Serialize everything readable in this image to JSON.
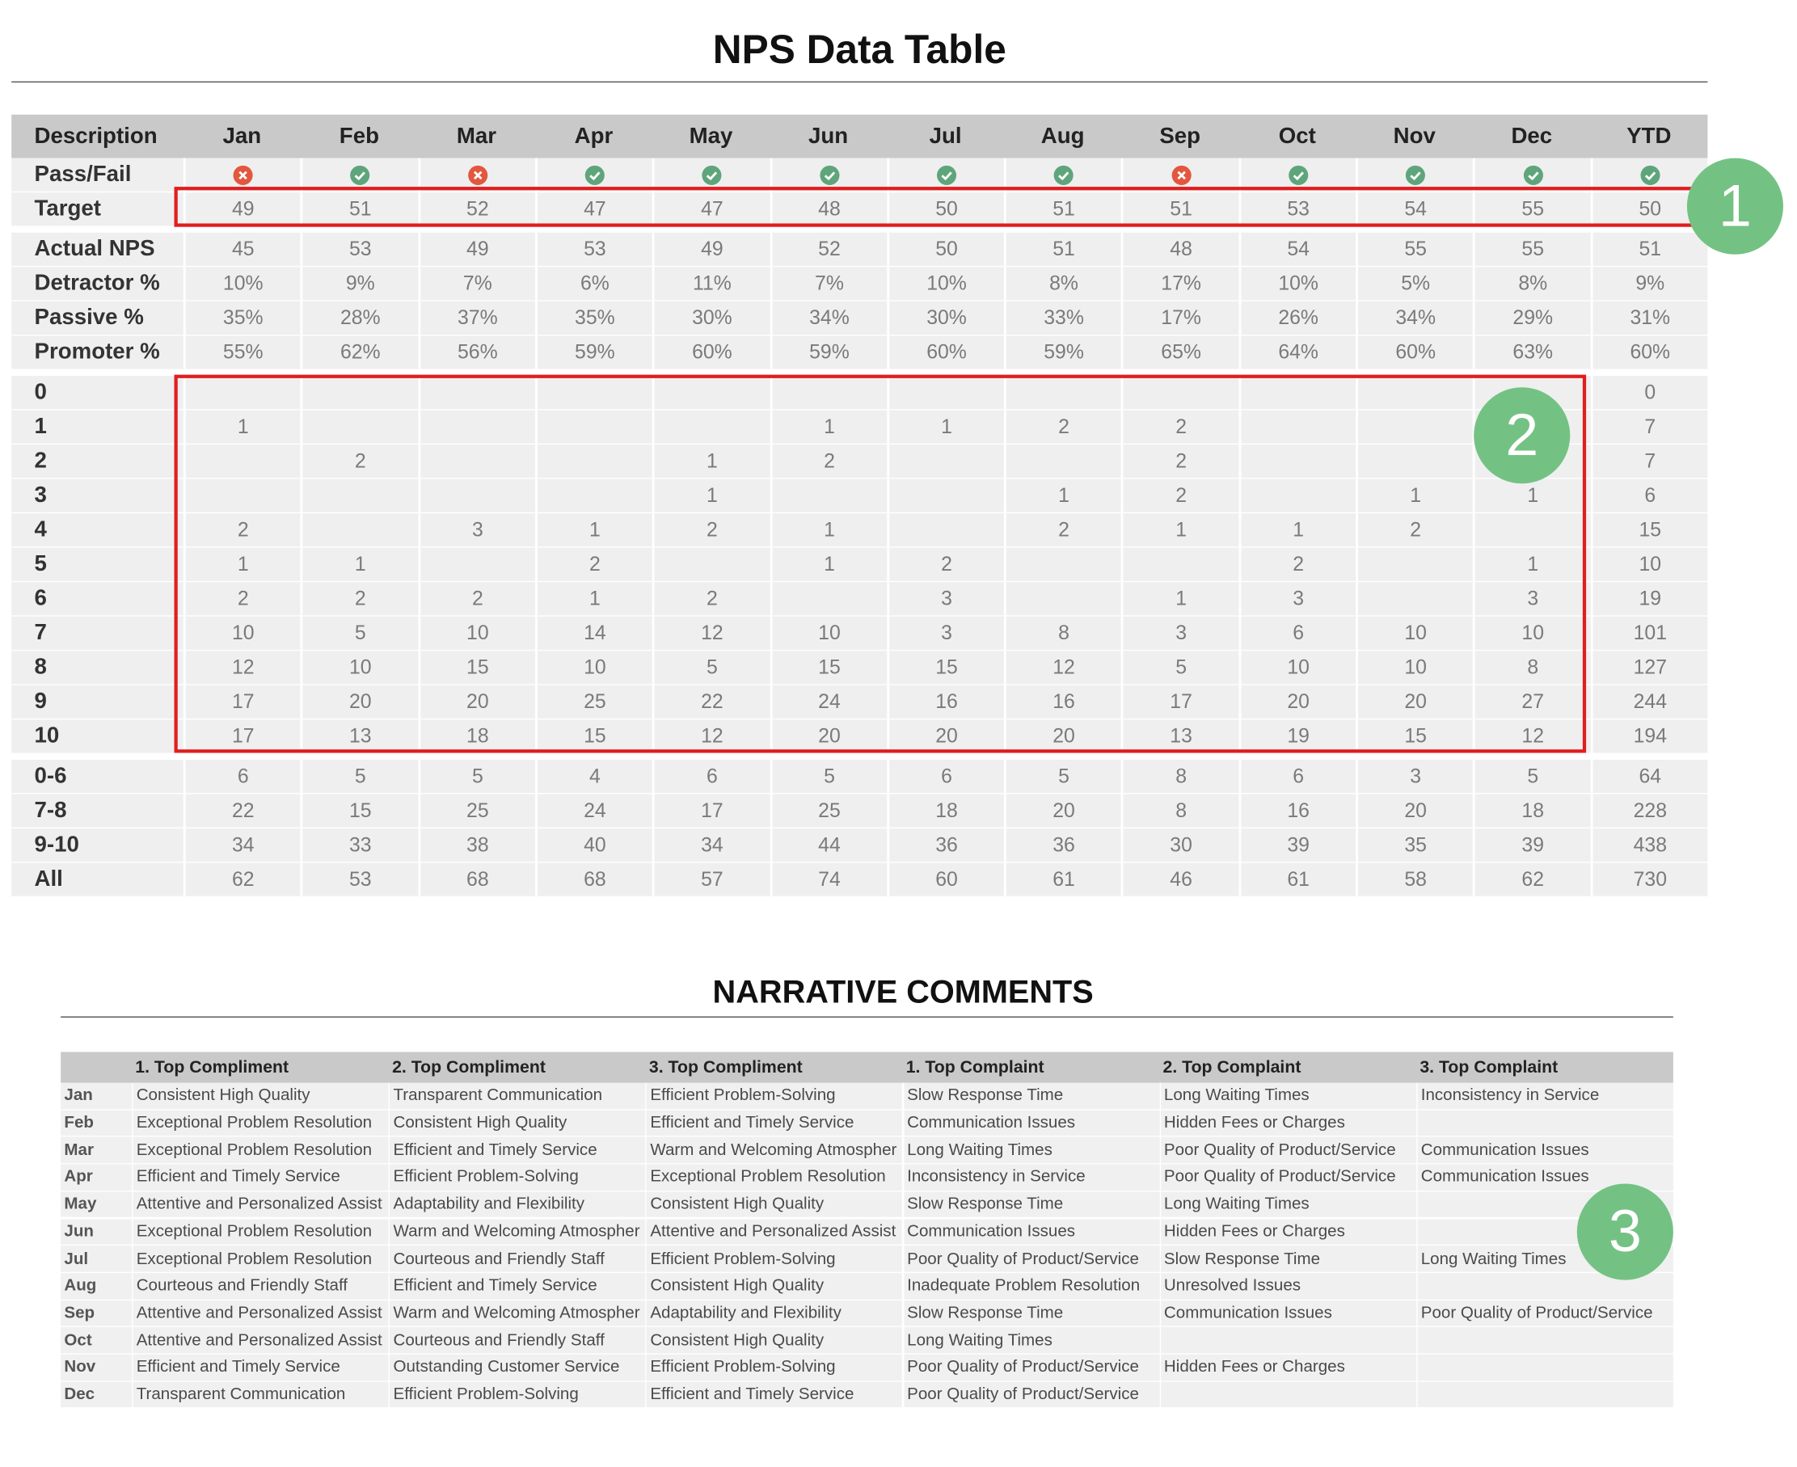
{
  "title": "NPS Data Table",
  "table": {
    "header": [
      "Description",
      "Jan",
      "Feb",
      "Mar",
      "Apr",
      "May",
      "Jun",
      "Jul",
      "Aug",
      "Sep",
      "Oct",
      "Nov",
      "Dec",
      "YTD"
    ],
    "blocks": [
      [
        {
          "label": "Pass/Fail",
          "status": [
            false,
            true,
            false,
            true,
            true,
            true,
            true,
            true,
            false,
            true,
            true,
            true,
            true
          ]
        },
        {
          "label": "Target",
          "values": [
            49,
            51,
            52,
            47,
            47,
            48,
            50,
            51,
            51,
            53,
            54,
            55,
            50
          ]
        }
      ],
      [
        {
          "label": "Actual NPS",
          "values": [
            45,
            53,
            49,
            53,
            49,
            52,
            50,
            51,
            48,
            54,
            55,
            55,
            51
          ]
        },
        {
          "label": "Detractor %",
          "values": [
            "10%",
            "9%",
            "7%",
            "6%",
            "11%",
            "7%",
            "10%",
            "8%",
            "17%",
            "10%",
            "5%",
            "8%",
            "9%"
          ]
        },
        {
          "label": "Passive %",
          "values": [
            "35%",
            "28%",
            "37%",
            "35%",
            "30%",
            "34%",
            "30%",
            "33%",
            "17%",
            "26%",
            "34%",
            "29%",
            "31%"
          ]
        },
        {
          "label": "Promoter %",
          "values": [
            "55%",
            "62%",
            "56%",
            "59%",
            "60%",
            "59%",
            "60%",
            "59%",
            "65%",
            "64%",
            "60%",
            "63%",
            "60%"
          ]
        }
      ],
      [
        {
          "label": "0",
          "values": [
            null,
            null,
            null,
            null,
            null,
            null,
            null,
            null,
            null,
            null,
            null,
            null,
            0
          ]
        },
        {
          "label": "1",
          "values": [
            1,
            null,
            null,
            null,
            null,
            1,
            1,
            2,
            2,
            null,
            null,
            null,
            7
          ]
        },
        {
          "label": "2",
          "values": [
            null,
            2,
            null,
            null,
            1,
            2,
            null,
            null,
            2,
            null,
            null,
            null,
            7
          ]
        },
        {
          "label": "3",
          "values": [
            null,
            null,
            null,
            null,
            1,
            null,
            null,
            1,
            2,
            null,
            1,
            1,
            6
          ]
        },
        {
          "label": "4",
          "values": [
            2,
            null,
            3,
            1,
            2,
            1,
            null,
            2,
            1,
            1,
            2,
            null,
            15
          ]
        },
        {
          "label": "5",
          "values": [
            1,
            1,
            null,
            2,
            null,
            1,
            2,
            null,
            null,
            2,
            null,
            1,
            10
          ]
        },
        {
          "label": "6",
          "values": [
            2,
            2,
            2,
            1,
            2,
            null,
            3,
            null,
            1,
            3,
            null,
            3,
            19
          ]
        },
        {
          "label": "7",
          "values": [
            10,
            5,
            10,
            14,
            12,
            10,
            3,
            8,
            3,
            6,
            10,
            10,
            101
          ]
        },
        {
          "label": "8",
          "values": [
            12,
            10,
            15,
            10,
            5,
            15,
            15,
            12,
            5,
            10,
            10,
            8,
            127
          ]
        },
        {
          "label": "9",
          "values": [
            17,
            20,
            20,
            25,
            22,
            24,
            16,
            16,
            17,
            20,
            20,
            27,
            244
          ]
        },
        {
          "label": "10",
          "values": [
            17,
            13,
            18,
            15,
            12,
            20,
            20,
            20,
            13,
            19,
            15,
            12,
            194
          ]
        }
      ],
      [
        {
          "label": "0-6",
          "values": [
            6,
            5,
            5,
            4,
            6,
            5,
            6,
            5,
            8,
            6,
            3,
            5,
            64
          ]
        },
        {
          "label": "7-8",
          "values": [
            22,
            15,
            25,
            24,
            17,
            25,
            18,
            20,
            8,
            16,
            20,
            18,
            228
          ]
        },
        {
          "label": "9-10",
          "values": [
            34,
            33,
            38,
            40,
            34,
            44,
            36,
            36,
            30,
            39,
            35,
            39,
            438
          ]
        },
        {
          "label": "All",
          "values": [
            62,
            53,
            68,
            68,
            57,
            74,
            60,
            61,
            46,
            61,
            58,
            62,
            730
          ]
        }
      ]
    ]
  },
  "narrative": {
    "title": "NARRATIVE COMMENTS",
    "columns": [
      "1. Top Compliment",
      "2. Top Compliment",
      "3. Top Compliment",
      "1. Top Complaint",
      "2. Top Complaint",
      "3. Top Complaint"
    ],
    "rows": [
      {
        "month": "Jan",
        "cells": [
          "Consistent High Quality",
          "Transparent Communication",
          "Efficient Problem-Solving",
          "Slow Response Time",
          "Long Waiting Times",
          "Inconsistency in Service"
        ]
      },
      {
        "month": "Feb",
        "cells": [
          "Exceptional Problem Resolution",
          "Consistent High Quality",
          "Efficient and Timely Service",
          "Communication Issues",
          "Hidden Fees or Charges",
          null
        ]
      },
      {
        "month": "Mar",
        "cells": [
          "Exceptional Problem Resolution",
          "Efficient and Timely Service",
          "Warm and Welcoming Atmospher",
          "Long Waiting Times",
          "Poor Quality of Product/Service",
          "Communication Issues"
        ]
      },
      {
        "month": "Apr",
        "cells": [
          "Efficient and Timely Service",
          "Efficient Problem-Solving",
          "Exceptional Problem Resolution",
          "Inconsistency in Service",
          "Poor Quality of Product/Service",
          "Communication Issues"
        ]
      },
      {
        "month": "May",
        "cells": [
          "Attentive and Personalized Assist",
          "Adaptability and Flexibility",
          "Consistent High Quality",
          "Slow Response Time",
          "Long Waiting Times",
          null
        ]
      },
      {
        "month": "Jun",
        "cells": [
          "Exceptional Problem Resolution",
          "Warm and Welcoming Atmospher",
          "Attentive and Personalized Assist",
          "Communication Issues",
          "Hidden Fees or Charges",
          null
        ]
      },
      {
        "month": "Jul",
        "cells": [
          "Exceptional Problem Resolution",
          "Courteous and Friendly Staff",
          "Efficient Problem-Solving",
          "Poor Quality of Product/Service",
          "Slow Response Time",
          "Long Waiting Times"
        ]
      },
      {
        "month": "Aug",
        "cells": [
          "Courteous and Friendly Staff",
          "Efficient and Timely Service",
          "Consistent High Quality",
          "Inadequate Problem Resolution",
          "Unresolved Issues",
          null
        ]
      },
      {
        "month": "Sep",
        "cells": [
          "Attentive and Personalized Assist",
          "Warm and Welcoming Atmospher",
          "Adaptability and Flexibility",
          "Slow Response Time",
          "Communication Issues",
          "Poor Quality of Product/Service"
        ]
      },
      {
        "month": "Oct",
        "cells": [
          "Attentive and Personalized Assist",
          "Courteous and Friendly Staff",
          "Consistent High Quality",
          "Long Waiting Times",
          null,
          null
        ]
      },
      {
        "month": "Nov",
        "cells": [
          "Efficient and Timely Service",
          "Outstanding Customer Service",
          "Efficient Problem-Solving",
          "Poor Quality of Product/Service",
          "Hidden Fees or Charges",
          null
        ]
      },
      {
        "month": "Dec",
        "cells": [
          "Transparent Communication",
          "Efficient Problem-Solving",
          "Efficient and Timely Service",
          "Poor Quality of Product/Service",
          null,
          null
        ]
      }
    ]
  },
  "callouts": [
    "1",
    "2",
    "3"
  ]
}
